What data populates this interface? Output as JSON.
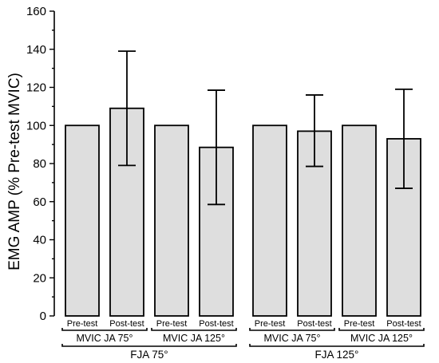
{
  "chart_data": {
    "type": "bar",
    "title": "",
    "ylabel": "EMG AMP (% Pre-test MVIC)",
    "xlabel": "",
    "ylim": [
      0,
      160
    ],
    "yticks": [
      0,
      20,
      40,
      60,
      80,
      100,
      120,
      140,
      160
    ],
    "grid": false,
    "bar_color": "#dedede",
    "categories": [
      "Pre-test",
      "Post-test",
      "Pre-test",
      "Post-test",
      "Pre-test",
      "Post-test",
      "Pre-test",
      "Post-test"
    ],
    "values": [
      100,
      109,
      100,
      88.5,
      100,
      97,
      100,
      93
    ],
    "error_upper": [
      null,
      139,
      null,
      118.5,
      null,
      116,
      null,
      119
    ],
    "error_lower": [
      null,
      79,
      null,
      58.5,
      null,
      78.5,
      null,
      67
    ],
    "groups": [
      {
        "label": "MVIC JA 75°",
        "start": 0,
        "end": 1
      },
      {
        "label": "MVIC JA 125°",
        "start": 2,
        "end": 3
      },
      {
        "label": "MVIC JA 75°",
        "start": 4,
        "end": 5
      },
      {
        "label": "MVIC JA 125°",
        "start": 6,
        "end": 7
      }
    ],
    "top_groups": [
      {
        "label": "FJA 75°",
        "start": 0,
        "end": 3
      },
      {
        "label": "FJA 125°",
        "start": 4,
        "end": 7
      }
    ]
  }
}
